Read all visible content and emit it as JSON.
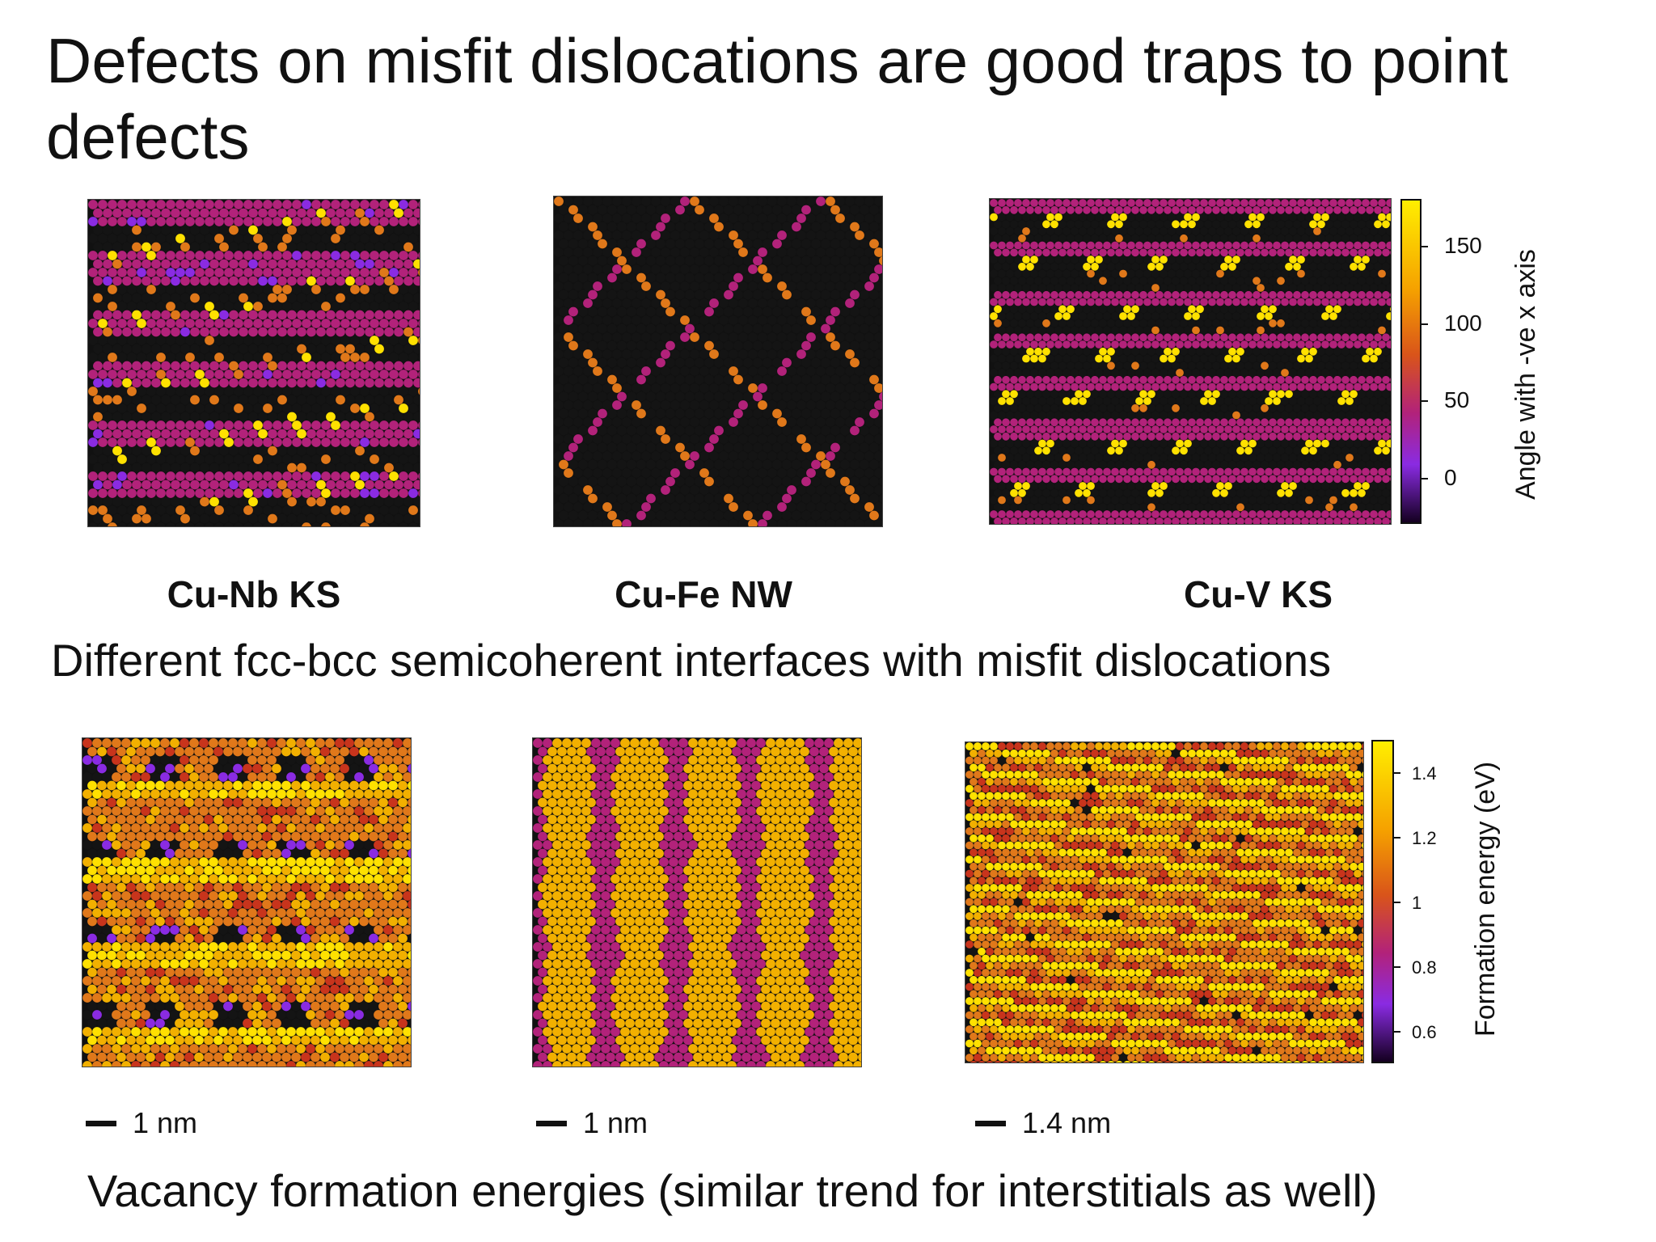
{
  "title": "Defects on misfit dislocations are good traps to point defects",
  "top_panels": [
    {
      "label": "Cu-Nb KS",
      "icon": "cu-nb-ks-angle-map"
    },
    {
      "label": "Cu-Fe NW",
      "icon": "cu-fe-nw-angle-map"
    },
    {
      "label": "Cu-V KS",
      "icon": "cu-v-ks-angle-map"
    }
  ],
  "top_caption": "Different fcc-bcc semicoherent interfaces with misfit dislocations",
  "top_colorbar": {
    "axis_label": "Angle with -ve x axis",
    "ticks": [
      "150",
      "100",
      "50",
      "0"
    ],
    "colors": [
      "#ffee00",
      "#f5a000",
      "#d9541a",
      "#b2227a",
      "#8a2be2",
      "#140020"
    ]
  },
  "bottom_scalebars": [
    "1 nm",
    "1 nm",
    "1.4 nm"
  ],
  "bottom_colorbar": {
    "axis_label": "Formation energy (eV)",
    "ticks": [
      "1.4",
      "1.2",
      "1",
      "0.8",
      "0.6"
    ],
    "colors": [
      "#ffee00",
      "#f5a000",
      "#d9541a",
      "#b2227a",
      "#8a2be2",
      "#140020"
    ]
  },
  "bottom_caption": "Vacancy formation energies (similar trend for interstitials as well)"
}
